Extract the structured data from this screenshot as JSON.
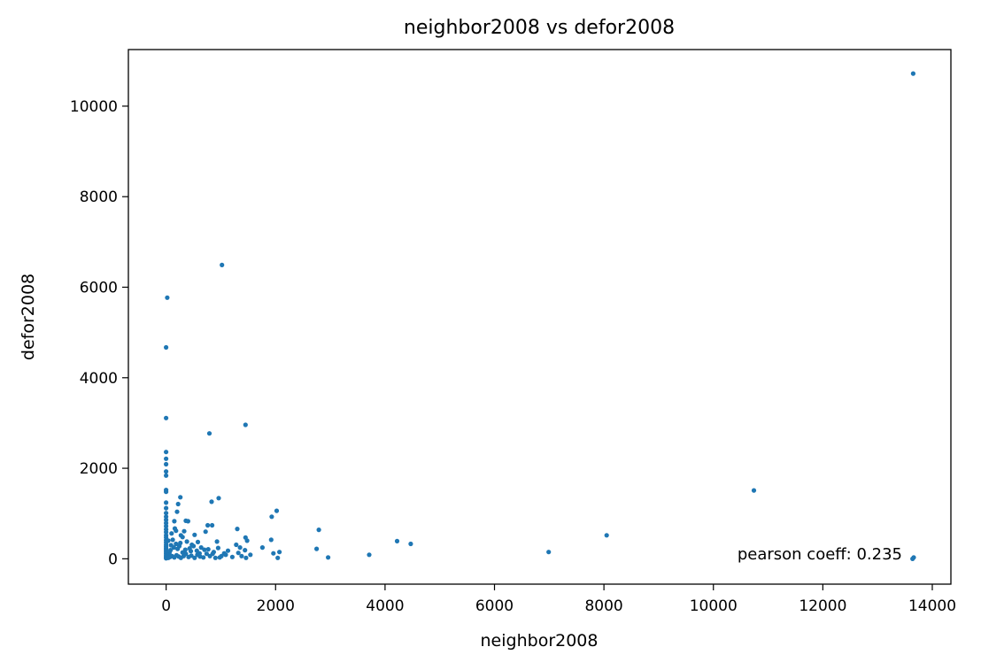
{
  "chart_data": {
    "type": "scatter",
    "title": "neighbor2008 vs defor2008",
    "xlabel": "neighbor2008",
    "ylabel": "defor2008",
    "xlim": [
      -690,
      14340
    ],
    "ylim": [
      -560,
      11250
    ],
    "xticks": [
      0,
      2000,
      4000,
      6000,
      8000,
      10000,
      12000,
      14000
    ],
    "yticks": [
      0,
      2000,
      4000,
      6000,
      8000,
      10000
    ],
    "grid": false,
    "legend": "none",
    "annotation": "pearson coeff: 0.235",
    "color": "#1f77b4",
    "points": [
      [
        13650,
        10720
      ],
      [
        1020,
        6490
      ],
      [
        20,
        5770
      ],
      [
        0,
        4670
      ],
      [
        0,
        3110
      ],
      [
        1450,
        2960
      ],
      [
        790,
        2770
      ],
      [
        0,
        2360
      ],
      [
        0,
        2210
      ],
      [
        0,
        2090
      ],
      [
        0,
        1930
      ],
      [
        0,
        1840
      ],
      [
        10740,
        1510
      ],
      [
        0,
        1520
      ],
      [
        0,
        1480
      ],
      [
        960,
        1340
      ],
      [
        830,
        1260
      ],
      [
        260,
        1360
      ],
      [
        2020,
        1060
      ],
      [
        1930,
        930
      ],
      [
        8050,
        520
      ],
      [
        4470,
        330
      ],
      [
        4220,
        390
      ],
      [
        6990,
        150
      ],
      [
        3710,
        90
      ],
      [
        2790,
        640
      ],
      [
        2750,
        220
      ],
      [
        2960,
        30
      ],
      [
        1920,
        420
      ],
      [
        1960,
        120
      ],
      [
        2070,
        150
      ],
      [
        2040,
        20
      ],
      [
        1760,
        250
      ],
      [
        1450,
        470
      ],
      [
        1480,
        400
      ],
      [
        1440,
        190
      ],
      [
        1460,
        20
      ],
      [
        1300,
        660
      ],
      [
        1350,
        250
      ],
      [
        1320,
        130
      ],
      [
        1060,
        120
      ],
      [
        1090,
        90
      ],
      [
        980,
        30
      ],
      [
        840,
        740
      ],
      [
        760,
        740
      ],
      [
        720,
        600
      ],
      [
        580,
        370
      ],
      [
        520,
        530
      ],
      [
        500,
        280
      ],
      [
        450,
        170
      ],
      [
        400,
        830
      ],
      [
        360,
        840
      ],
      [
        330,
        610
      ],
      [
        300,
        480
      ],
      [
        270,
        520
      ],
      [
        220,
        1210
      ],
      [
        200,
        1040
      ],
      [
        150,
        830
      ],
      [
        180,
        620
      ],
      [
        160,
        670
      ],
      [
        120,
        420
      ],
      [
        100,
        560
      ],
      [
        90,
        300
      ],
      [
        80,
        190
      ],
      [
        60,
        130
      ],
      [
        30,
        80
      ],
      [
        40,
        400
      ],
      [
        10,
        30
      ],
      [
        0,
        1240
      ],
      [
        0,
        1120
      ],
      [
        0,
        1010
      ],
      [
        0,
        930
      ],
      [
        0,
        860
      ],
      [
        0,
        790
      ],
      [
        0,
        720
      ],
      [
        0,
        650
      ],
      [
        0,
        590
      ],
      [
        0,
        520
      ],
      [
        0,
        470
      ],
      [
        0,
        410
      ],
      [
        0,
        360
      ],
      [
        0,
        310
      ],
      [
        0,
        270
      ],
      [
        0,
        230
      ],
      [
        0,
        190
      ],
      [
        0,
        150
      ],
      [
        0,
        110
      ],
      [
        0,
        70
      ],
      [
        0,
        40
      ],
      [
        0,
        10
      ],
      [
        40,
        20
      ],
      [
        70,
        40
      ],
      [
        110,
        60
      ],
      [
        150,
        30
      ],
      [
        190,
        80
      ],
      [
        230,
        50
      ],
      [
        270,
        20
      ],
      [
        320,
        60
      ],
      [
        360,
        110
      ],
      [
        410,
        40
      ],
      [
        460,
        70
      ],
      [
        520,
        20
      ],
      [
        570,
        90
      ],
      [
        620,
        50
      ],
      [
        680,
        30
      ],
      [
        740,
        110
      ],
      [
        800,
        60
      ],
      [
        870,
        150
      ],
      [
        900,
        20
      ],
      [
        950,
        240
      ],
      [
        1010,
        60
      ],
      [
        1130,
        180
      ],
      [
        1210,
        40
      ],
      [
        1280,
        310
      ],
      [
        1380,
        60
      ],
      [
        1540,
        90
      ],
      [
        560,
        180
      ],
      [
        640,
        250
      ],
      [
        700,
        200
      ],
      [
        430,
        230
      ],
      [
        350,
        200
      ],
      [
        300,
        140
      ],
      [
        240,
        280
      ],
      [
        210,
        220
      ],
      [
        180,
        330
      ],
      [
        140,
        250
      ],
      [
        260,
        350
      ],
      [
        380,
        380
      ],
      [
        470,
        310
      ],
      [
        610,
        120
      ],
      [
        770,
        210
      ],
      [
        850,
        110
      ],
      [
        930,
        380
      ],
      [
        13660,
        30
      ],
      [
        13640,
        0
      ]
    ]
  }
}
